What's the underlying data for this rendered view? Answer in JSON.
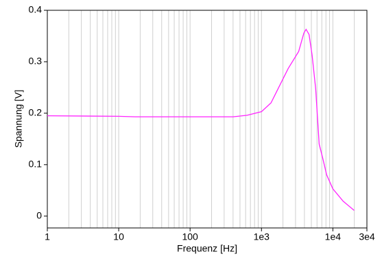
{
  "chart_data": {
    "type": "line",
    "x_label": "Frequenz [Hz]",
    "y_label": "Spannung [V]",
    "x": [
      1,
      10,
      17,
      100,
      400,
      630,
      1000,
      1360,
      1700,
      2371,
      3320,
      3930,
      4217,
      4640,
      5120,
      5750,
      6430,
      7200,
      8190,
      10000,
      13930,
      19900
    ],
    "series": [
      {
        "name": "Spannung",
        "color": "#ff22ff",
        "values": [
          0.195,
          0.194,
          0.193,
          0.193,
          0.193,
          0.196,
          0.203,
          0.22,
          0.247,
          0.287,
          0.32,
          0.356,
          0.363,
          0.353,
          0.313,
          0.247,
          0.14,
          0.113,
          0.08,
          0.053,
          0.029,
          0.011
        ]
      }
    ],
    "xscale": "log",
    "xlim": [
      1,
      30000
    ],
    "xticks": [
      1,
      10,
      100,
      {
        "value": 1000,
        "label": "1e3"
      },
      {
        "value": 10000,
        "label": "1e4"
      },
      {
        "value": 30000,
        "label": "3e4"
      }
    ],
    "ylim": [
      -0.023,
      0.4
    ],
    "yticks": [
      0,
      0.1,
      0.2,
      0.3,
      0.4
    ],
    "grid": "x-minor"
  }
}
